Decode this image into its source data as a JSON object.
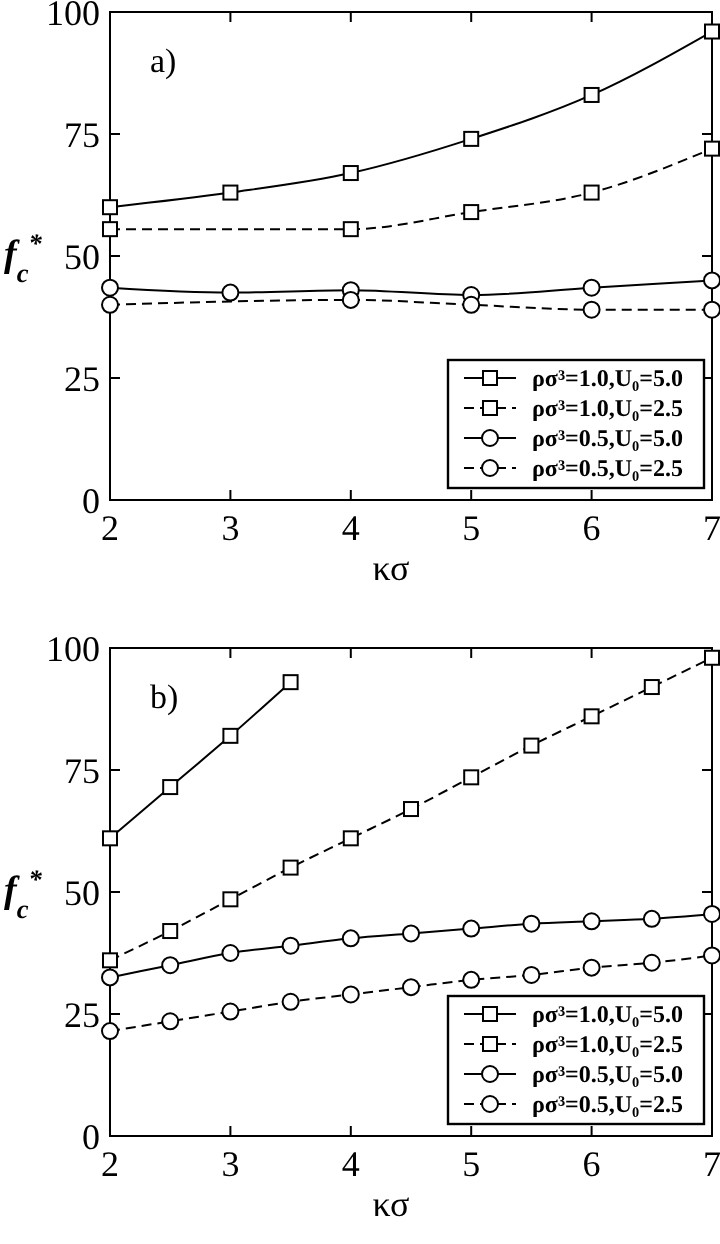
{
  "chart_data": [
    {
      "type": "line",
      "xlabel": "κσ",
      "ylabel": "f$_{c}$$^{*}$",
      "annotations": [
        "a)"
      ],
      "xlim": [
        2,
        7
      ],
      "ylim": [
        0,
        100
      ],
      "xticks": [
        2,
        3,
        4,
        5,
        6,
        7
      ],
      "yticks": [
        0,
        25,
        50,
        75,
        100
      ],
      "legend": "bottom right",
      "grid": false,
      "series": [
        {
          "name": "ρσ³=1.0,U₀=5.0",
          "color": "#000000",
          "marker": "square",
          "line_style": "solid",
          "x": [
            2,
            3,
            4,
            5,
            6,
            7
          ],
          "values": [
            60,
            63,
            67,
            74,
            83,
            96
          ]
        },
        {
          "name": "ρσ³=1.0,U₀=2.5",
          "color": "#000000",
          "marker": "square",
          "line_style": "dashed",
          "x": [
            2,
            4,
            5,
            6,
            7
          ],
          "values": [
            55.5,
            55.5,
            59,
            63,
            72
          ]
        },
        {
          "name": "ρσ³=0.5,U₀=5.0",
          "color": "#000000",
          "marker": "circle",
          "line_style": "solid",
          "x": [
            2,
            3,
            4,
            5,
            6,
            7
          ],
          "values": [
            43.5,
            42.5,
            43,
            42,
            43.5,
            45
          ]
        },
        {
          "name": "ρσ³=0.5,U₀=2.5",
          "color": "#000000",
          "marker": "circle",
          "line_style": "dashed",
          "x": [
            2,
            4,
            5,
            6,
            7
          ],
          "values": [
            40,
            41,
            40,
            39,
            39
          ]
        }
      ]
    },
    {
      "type": "line",
      "xlabel": "κσ",
      "ylabel": "f$_{c}$$^{*}$",
      "annotations": [
        "b)"
      ],
      "xlim": [
        2,
        7
      ],
      "ylim": [
        0,
        100
      ],
      "xticks": [
        2,
        3,
        4,
        5,
        6,
        7
      ],
      "yticks": [
        0,
        25,
        50,
        75,
        100
      ],
      "legend": "bottom right",
      "grid": false,
      "series": [
        {
          "name": "ρσ³=1.0,U₀=5.0",
          "color": "#000000",
          "marker": "square",
          "line_style": "solid",
          "x": [
            2,
            2.5,
            3,
            3.5
          ],
          "values": [
            61,
            71.5,
            82,
            93
          ]
        },
        {
          "name": "ρσ³=1.0,U₀=2.5",
          "color": "#000000",
          "marker": "square",
          "line_style": "dashed",
          "x": [
            2,
            2.5,
            3,
            3.5,
            4,
            4.5,
            5,
            5.5,
            6,
            6.5,
            7
          ],
          "values": [
            36,
            42,
            48.5,
            55,
            61,
            67,
            73.5,
            80,
            86,
            92,
            98
          ]
        },
        {
          "name": "ρσ³=0.5,U₀=5.0",
          "color": "#000000",
          "marker": "circle",
          "line_style": "solid",
          "x": [
            2,
            2.5,
            3,
            3.5,
            4,
            4.5,
            5,
            5.5,
            6,
            6.5,
            7
          ],
          "values": [
            32.5,
            35,
            37.5,
            39,
            40.5,
            41.5,
            42.5,
            43.5,
            44,
            44.5,
            45.5
          ]
        },
        {
          "name": "ρσ³=0.5,U₀=2.5",
          "color": "#000000",
          "marker": "circle",
          "line_style": "dashed",
          "x": [
            2,
            2.5,
            3,
            3.5,
            4,
            4.5,
            5,
            5.5,
            6,
            6.5,
            7
          ],
          "values": [
            21.5,
            23.5,
            25.5,
            27.5,
            29,
            30.5,
            32,
            33,
            34.5,
            35.5,
            37
          ]
        }
      ]
    }
  ]
}
